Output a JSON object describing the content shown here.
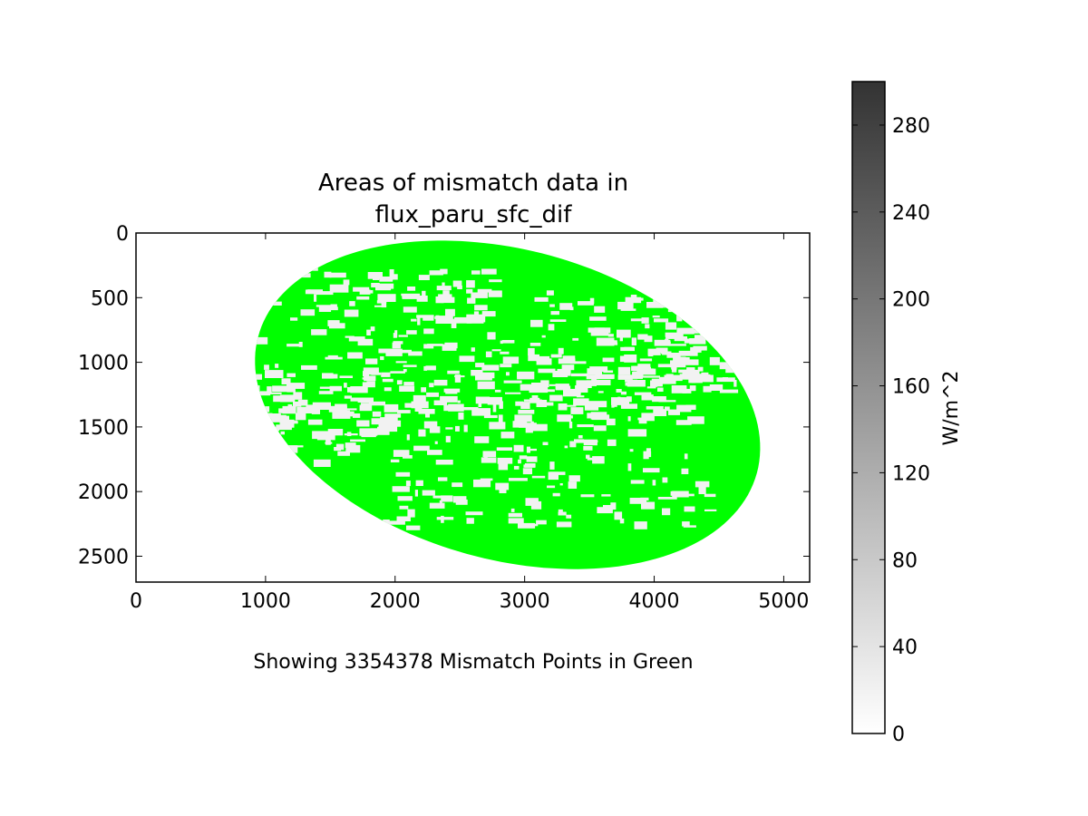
{
  "chart_data": {
    "type": "heatmap",
    "title_line1": "Areas of mismatch data in",
    "title_line2": "flux_paru_sfc_dif",
    "caption": "Showing 3354378 Mismatch Points in Green",
    "xlim": [
      0,
      5200
    ],
    "ylim": [
      2700,
      0
    ],
    "x_ticks": [
      0,
      1000,
      2000,
      3000,
      4000,
      5000
    ],
    "y_ticks": [
      0,
      500,
      1000,
      1500,
      2000,
      2500
    ],
    "mismatch_color": "#00ff00",
    "mismatch_count": 3354378,
    "colorbar": {
      "label": "W/m^2",
      "range": [
        0,
        300
      ],
      "ticks": [
        0,
        40,
        80,
        120,
        160,
        200,
        240,
        280
      ],
      "cmap_low": "#ffffff",
      "cmap_high": "#333333"
    }
  }
}
